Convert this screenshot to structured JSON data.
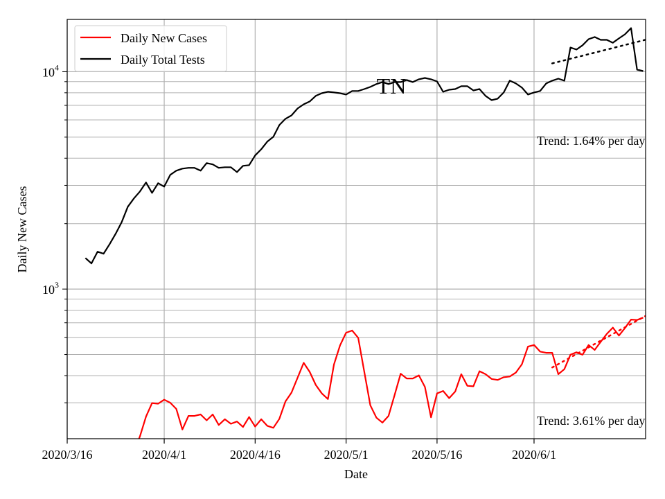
{
  "chart_data": {
    "type": "line",
    "title": "TN",
    "xlabel": "Date",
    "ylabel": "Daily New Cases",
    "yscale": "log",
    "ylim": [
      205,
      17400
    ],
    "x_origin_date": "2020/3/16",
    "xlim_days": [
      0,
      95.4
    ],
    "x_start_day": 3,
    "grid": true,
    "legend_position": "top-left",
    "x_ticks": [
      {
        "day": 0,
        "label": "2020/3/16"
      },
      {
        "day": 16,
        "label": "2020/4/1"
      },
      {
        "day": 31,
        "label": "2020/4/16"
      },
      {
        "day": 46,
        "label": "2020/5/1"
      },
      {
        "day": 61,
        "label": "2020/5/16"
      },
      {
        "day": 77,
        "label": "2020/6/1"
      }
    ],
    "y_ticks": [
      {
        "value": 1000,
        "base": "10",
        "exp": "3"
      },
      {
        "value": 10000,
        "base": "10",
        "exp": "4"
      }
    ],
    "series": [
      {
        "name": "Daily New Cases",
        "color": "#ff0000",
        "start_index": 8,
        "values": [
          180,
          210,
          259,
          299,
          297,
          310,
          300,
          281,
          226,
          261,
          261,
          265,
          249,
          265,
          237,
          252,
          240,
          246,
          232,
          258,
          233,
          252,
          235,
          230,
          253,
          304,
          334,
          391,
          458,
          416,
          362,
          331,
          312,
          450,
          551,
          630,
          645,
          597,
          416,
          292,
          256,
          243,
          261,
          325,
          408,
          388,
          388,
          401,
          355,
          257,
          331,
          340,
          315,
          338,
          406,
          359,
          357,
          419,
          406,
          386,
          382,
          393,
          396,
          413,
          451,
          544,
          553,
          516,
          509,
          509,
          406,
          428,
          499,
          512,
          499,
          553,
          525,
          572,
          622,
          665,
          611,
          662,
          724,
          721,
          739
        ]
      },
      {
        "name": "Daily Total Tests",
        "color": "#000000",
        "start_index": 0,
        "values": [
          1390,
          1312,
          1486,
          1454,
          1611,
          1798,
          2037,
          2393,
          2612,
          2812,
          3092,
          2771,
          3070,
          2960,
          3353,
          3505,
          3583,
          3610,
          3610,
          3505,
          3800,
          3745,
          3610,
          3636,
          3636,
          3453,
          3690,
          3717,
          4118,
          4398,
          4766,
          5019,
          5684,
          6072,
          6295,
          6776,
          7082,
          7297,
          7744,
          7962,
          8088,
          8024,
          7962,
          7852,
          8150,
          8150,
          8321,
          8512,
          8770,
          8960,
          8770,
          8960,
          8960,
          9160,
          8960,
          9225,
          9360,
          9225,
          9020,
          8088,
          8260,
          8321,
          8573,
          8573,
          8200,
          8321,
          7744,
          7400,
          7514,
          8024,
          9090,
          8830,
          8450,
          7852,
          8024,
          8150,
          8830,
          9090,
          9290,
          9090,
          12920,
          12640,
          13230,
          14120,
          14440,
          14010,
          14010,
          13590,
          14230,
          14860,
          15880,
          10220,
          10070
        ]
      }
    ],
    "trends": [
      {
        "series": "Daily Total Tests",
        "color": "#000000",
        "day_start": 80,
        "day_end": 95.4,
        "value_start": 10920,
        "rate_pct_per_day": 1.64,
        "label": "Trend: 1.64% per day"
      },
      {
        "series": "Daily New Cases",
        "color": "#ff0000",
        "day_start": 80,
        "day_end": 95.4,
        "value_start": 436,
        "rate_pct_per_day": 3.61,
        "label": "Trend: 3.61% per day"
      }
    ]
  }
}
